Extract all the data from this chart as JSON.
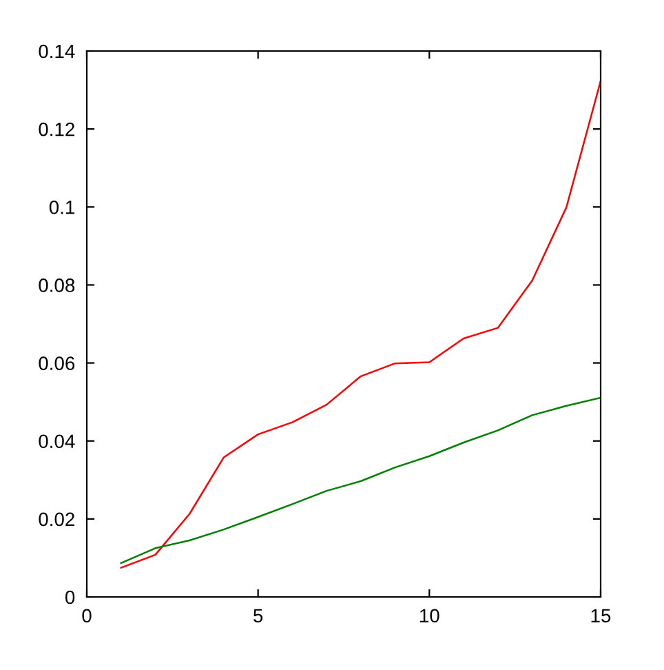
{
  "chart_data": {
    "type": "line",
    "x": [
      1,
      2,
      3,
      4,
      5,
      6,
      7,
      8,
      9,
      10,
      11,
      12,
      13,
      14,
      15
    ],
    "series": [
      {
        "color": "#ff0000",
        "values": [
          0.0075,
          0.0108,
          0.0213,
          0.0358,
          0.0417,
          0.0448,
          0.0493,
          0.0566,
          0.0599,
          0.0602,
          0.0663,
          0.069,
          0.0811,
          0.0999,
          0.1323
        ]
      },
      {
        "color": "#008000",
        "values": [
          0.0087,
          0.0125,
          0.0145,
          0.0173,
          0.0205,
          0.0238,
          0.0272,
          0.0297,
          0.0332,
          0.0361,
          0.0396,
          0.0427,
          0.0466,
          0.049,
          0.0511
        ]
      }
    ],
    "xlim": [
      0,
      15
    ],
    "ylim": [
      0,
      0.14
    ],
    "xticks": [
      0,
      5,
      10,
      15
    ],
    "yticks": [
      0,
      0.02,
      0.04,
      0.06,
      0.08,
      0.1,
      0.12,
      0.14
    ],
    "grid": false
  }
}
